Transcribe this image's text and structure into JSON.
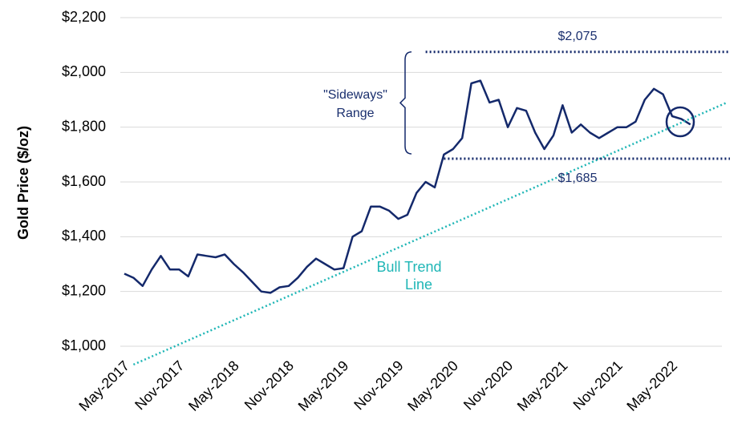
{
  "chart_data": {
    "type": "line",
    "y_label": "Gold Price ($/oz)",
    "x": [
      "May-2017",
      "Jun-2017",
      "Jul-2017",
      "Aug-2017",
      "Sep-2017",
      "Oct-2017",
      "Nov-2017",
      "Dec-2017",
      "Jan-2018",
      "Feb-2018",
      "Mar-2018",
      "Apr-2018",
      "May-2018",
      "Jun-2018",
      "Jul-2018",
      "Aug-2018",
      "Sep-2018",
      "Oct-2018",
      "Nov-2018",
      "Dec-2018",
      "Jan-2019",
      "Feb-2019",
      "Mar-2019",
      "Apr-2019",
      "May-2019",
      "Jun-2019",
      "Jul-2019",
      "Aug-2019",
      "Sep-2019",
      "Oct-2019",
      "Nov-2019",
      "Dec-2019",
      "Jan-2020",
      "Feb-2020",
      "Mar-2020",
      "Apr-2020",
      "May-2020",
      "Jun-2020",
      "Jul-2020",
      "Aug-2020",
      "Sep-2020",
      "Oct-2020",
      "Nov-2020",
      "Dec-2020",
      "Jan-2021",
      "Feb-2021",
      "Mar-2021",
      "Apr-2021",
      "May-2021",
      "Jun-2021",
      "Jul-2021",
      "Aug-2021",
      "Sep-2021",
      "Oct-2021",
      "Nov-2021",
      "Dec-2021",
      "Jan-2022",
      "Feb-2022",
      "Mar-2022",
      "Apr-2022",
      "May-2022",
      "Jun-2022",
      "Jul-2022"
    ],
    "series": [
      {
        "name": "Gold Price",
        "color": "#14296b",
        "values": [
          1265,
          1250,
          1220,
          1280,
          1330,
          1280,
          1280,
          1255,
          1335,
          1330,
          1325,
          1335,
          1300,
          1270,
          1235,
          1200,
          1195,
          1215,
          1220,
          1250,
          1290,
          1320,
          1300,
          1280,
          1285,
          1400,
          1420,
          1510,
          1510,
          1495,
          1465,
          1480,
          1560,
          1600,
          1580,
          1700,
          1720,
          1760,
          1960,
          1970,
          1890,
          1900,
          1800,
          1870,
          1860,
          1780,
          1720,
          1770,
          1880,
          1780,
          1810,
          1780,
          1760,
          1780,
          1800,
          1800,
          1820,
          1900,
          1940,
          1920,
          1840,
          1830,
          1810
        ]
      }
    ],
    "ylim": [
      1000,
      2200
    ],
    "yticks": [
      {
        "value": 1000,
        "label": "$1,000"
      },
      {
        "value": 1200,
        "label": "$1,200"
      },
      {
        "value": 1400,
        "label": "$1,400"
      },
      {
        "value": 1600,
        "label": "$1,600"
      },
      {
        "value": 1800,
        "label": "$1,800"
      },
      {
        "value": 2000,
        "label": "$2,000"
      },
      {
        "value": 2200,
        "label": "$2,200"
      }
    ],
    "xticks": [
      "May-2017",
      "Nov-2017",
      "May-2018",
      "Nov-2018",
      "May-2019",
      "Nov-2019",
      "May-2020",
      "Nov-2020",
      "May-2021",
      "Nov-2021",
      "May-2022"
    ],
    "grid": true,
    "levels": [
      {
        "value": 2075,
        "label": "$2,075",
        "from": "Feb-2020"
      },
      {
        "value": 1685,
        "label": "$1,685",
        "from": "Apr-2020"
      }
    ],
    "range_label": [
      "\"Sideways\"",
      "Range"
    ],
    "trend_line": {
      "label": [
        "Bull Trend",
        "Line"
      ],
      "color": "#1fb6b6",
      "x": [
        "Jun-2017",
        "Nov-2022"
      ],
      "values": [
        933,
        1890
      ]
    }
  }
}
